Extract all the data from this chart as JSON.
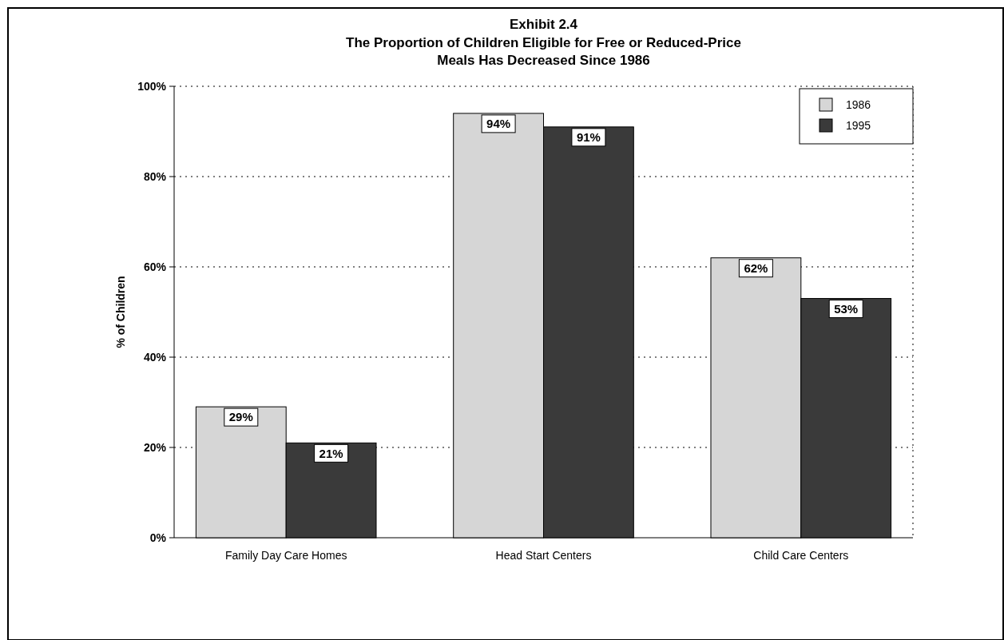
{
  "chart_data": {
    "type": "bar",
    "title": "Exhibit 2.4",
    "subtitle": "The Proportion of Children Eligible for Free or Reduced-Price Meals Has Decreased Since 1986",
    "ylabel": "% of Children",
    "categories": [
      "Family Day Care Homes",
      "Head Start Centers",
      "Child Care Centers"
    ],
    "series": [
      {
        "name": "1986",
        "color": "#d6d6d6",
        "values": [
          29,
          94,
          62
        ],
        "value_labels": [
          "29%",
          "94%",
          "62%"
        ]
      },
      {
        "name": "1995",
        "color": "#3a3a3a",
        "values": [
          21,
          91,
          53
        ],
        "value_labels": [
          "21%",
          "91%",
          "53%"
        ]
      }
    ],
    "ylim": [
      0,
      100
    ],
    "yticks": [
      {
        "value": 0,
        "label": "0%"
      },
      {
        "value": 20,
        "label": "20%"
      },
      {
        "value": 40,
        "label": "40%"
      },
      {
        "value": 60,
        "label": "60%"
      },
      {
        "value": 80,
        "label": "80%"
      },
      {
        "value": 100,
        "label": "100%"
      }
    ],
    "grid": "y",
    "legend": "top right"
  }
}
